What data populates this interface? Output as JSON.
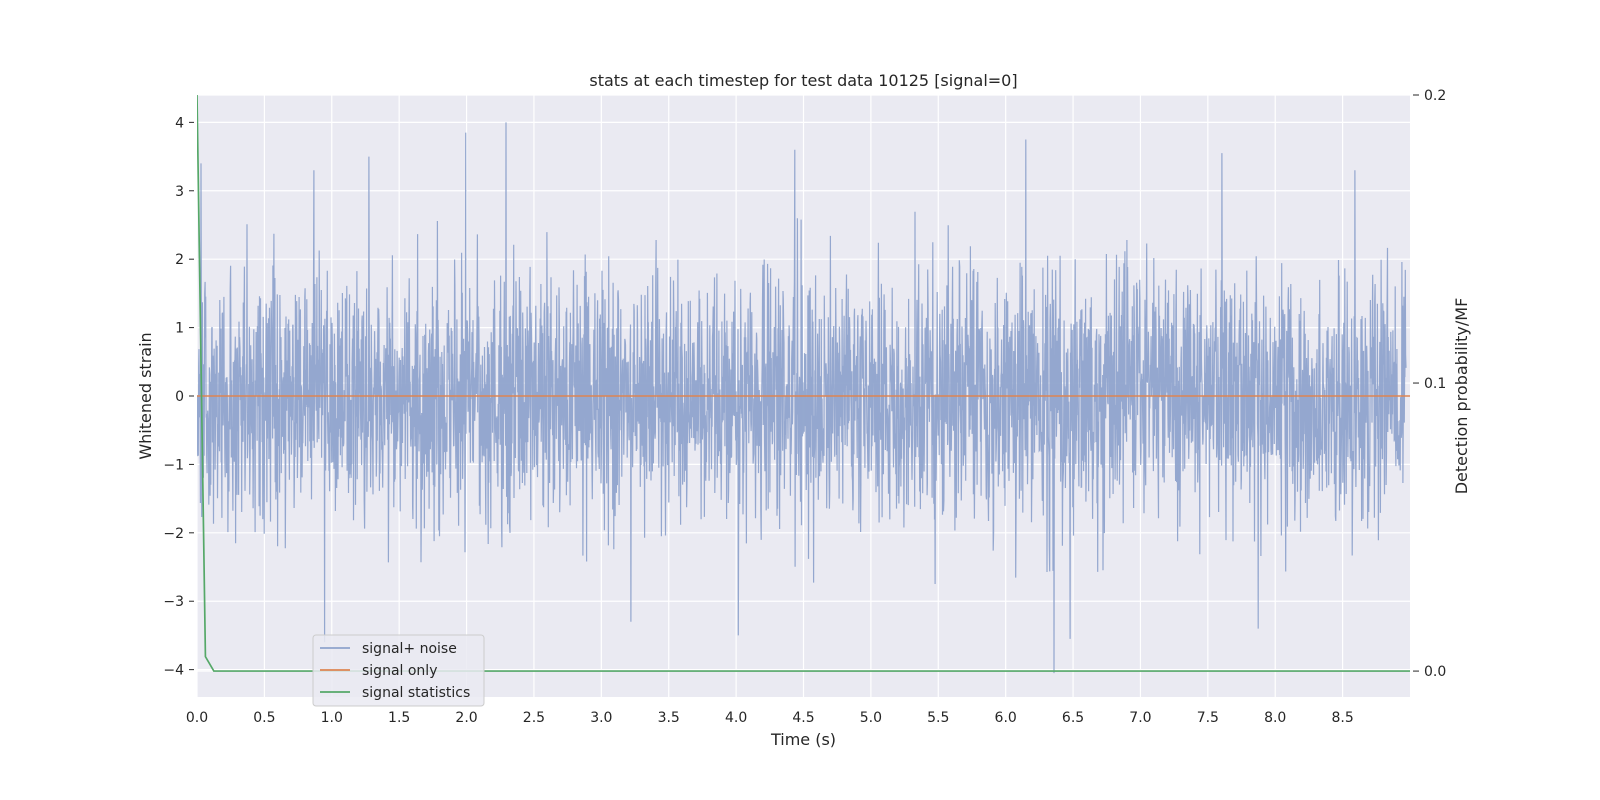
{
  "chart_data": {
    "type": "line",
    "title": "stats at each timestep for test data 10125 [signal=0]",
    "xlabel": "Time (s)",
    "ylabel": "Whitened strain",
    "ylabel_right": "Detection probability/MF",
    "xlim": [
      0.0,
      9.0
    ],
    "ylim": [
      -4.4,
      4.4
    ],
    "ylim_right": [
      -0.009,
      0.2
    ],
    "x_ticks": [
      "0.0",
      "0.5",
      "1.0",
      "1.5",
      "2.0",
      "2.5",
      "3.0",
      "3.5",
      "4.0",
      "4.5",
      "5.0",
      "5.5",
      "6.0",
      "6.5",
      "7.0",
      "7.5",
      "8.0",
      "8.5"
    ],
    "y_ticks": [
      "4",
      "3",
      "2",
      "1",
      "0",
      "−1",
      "−2",
      "−3",
      "−4"
    ],
    "y_ticks_right": [
      "0.2",
      "0.1",
      "0.0"
    ],
    "grid": true,
    "legend_position": "lower-left",
    "series": [
      {
        "name": "signal+ noise",
        "axis": "left",
        "color": "#8fa3cc",
        "description": "noise-like whitened strain, roughly within ±2.5 with spikes to ±4",
        "spikes": [
          {
            "x": 0.03,
            "y": 3.4
          },
          {
            "x": 0.87,
            "y": 3.3
          },
          {
            "x": 1.28,
            "y": 3.5
          },
          {
            "x": 2.0,
            "y": 3.85
          },
          {
            "x": 2.3,
            "y": 4.0
          },
          {
            "x": 4.45,
            "y": 3.6
          },
          {
            "x": 6.17,
            "y": 3.75
          },
          {
            "x": 7.63,
            "y": 3.55
          },
          {
            "x": 8.62,
            "y": 3.3
          },
          {
            "x": 0.95,
            "y": -3.6
          },
          {
            "x": 3.23,
            "y": -3.3
          },
          {
            "x": 4.03,
            "y": -3.5
          },
          {
            "x": 6.38,
            "y": -4.05
          },
          {
            "x": 6.5,
            "y": -3.55
          },
          {
            "x": 7.9,
            "y": -3.4
          }
        ]
      },
      {
        "name": "signal only",
        "axis": "left",
        "color": "#dd8452",
        "x": [
          0.0,
          9.0
        ],
        "y": [
          0.0,
          0.0
        ]
      },
      {
        "name": "signal statistics",
        "axis": "right",
        "color": "#55a868",
        "x": [
          0.0,
          0.0625,
          0.125,
          9.0
        ],
        "y": [
          0.2,
          0.005,
          0.0,
          0.0
        ]
      }
    ]
  }
}
